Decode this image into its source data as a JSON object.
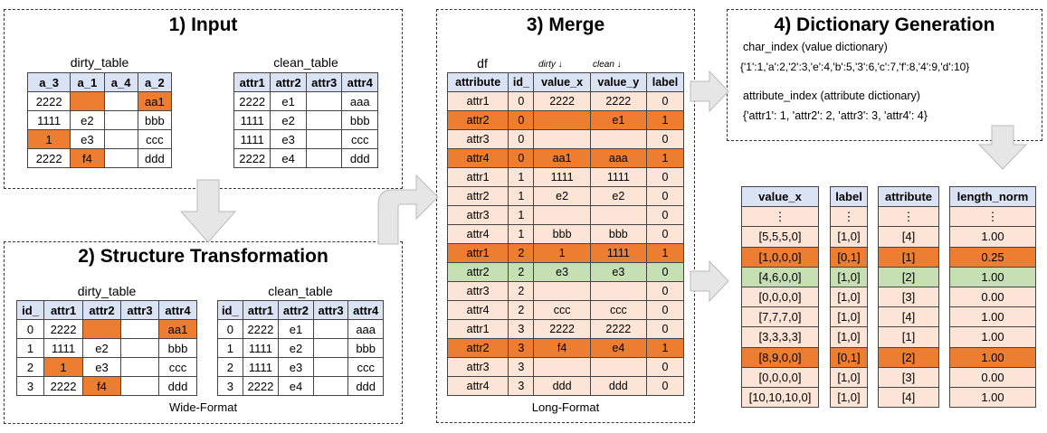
{
  "panel1": {
    "title": "1) Input",
    "dirty": {
      "caption": "dirty_table",
      "headers": [
        "a_3",
        "a_1",
        "a_4",
        "a_2"
      ],
      "rows": [
        [
          "2222",
          "",
          "",
          "aa1"
        ],
        [
          "1111",
          "e2",
          "",
          "bbb"
        ],
        [
          "1",
          "e3",
          "",
          "ccc"
        ],
        [
          "2222",
          "f4",
          "",
          "ddd"
        ]
      ],
      "highlight": [
        [
          0,
          1
        ],
        [
          0,
          3
        ],
        [
          2,
          0
        ],
        [
          3,
          1
        ]
      ]
    },
    "clean": {
      "caption": "clean_table",
      "headers": [
        "attr1",
        "attr2",
        "attr3",
        "attr4"
      ],
      "rows": [
        [
          "2222",
          "e1",
          "",
          "aaa"
        ],
        [
          "1111",
          "e2",
          "",
          "bbb"
        ],
        [
          "1111",
          "e3",
          "",
          "ccc"
        ],
        [
          "2222",
          "e4",
          "",
          "ddd"
        ]
      ],
      "highlight": []
    }
  },
  "panel2": {
    "title": "2) Structure Transformation",
    "footer": "Wide-Format",
    "dirty": {
      "caption": "dirty_table",
      "headers": [
        "id_",
        "attr1",
        "attr2",
        "attr3",
        "attr4"
      ],
      "rows": [
        [
          "0",
          "2222",
          "",
          "",
          "aa1"
        ],
        [
          "1",
          "1111",
          "e2",
          "",
          "bbb"
        ],
        [
          "2",
          "1",
          "e3",
          "",
          "ccc"
        ],
        [
          "3",
          "2222",
          "f4",
          "",
          "ddd"
        ]
      ],
      "highlight": [
        [
          0,
          2
        ],
        [
          0,
          4
        ],
        [
          2,
          1
        ],
        [
          3,
          2
        ]
      ]
    },
    "clean": {
      "caption": "clean_table",
      "headers": [
        "id_",
        "attr1",
        "attr2",
        "attr3",
        "attr4"
      ],
      "rows": [
        [
          "0",
          "2222",
          "e1",
          "",
          "aaa"
        ],
        [
          "1",
          "1111",
          "e2",
          "",
          "bbb"
        ],
        [
          "2",
          "1111",
          "e3",
          "",
          "ccc"
        ],
        [
          "3",
          "2222",
          "e4",
          "",
          "ddd"
        ]
      ],
      "highlight": []
    }
  },
  "panel3": {
    "title": "3) Merge",
    "footer": "Long-Format",
    "df_label": "df",
    "dirty_label": "dirty ↓",
    "clean_label": "clean ↓",
    "headers": [
      "attribute",
      "id_",
      "value_x",
      "value_y",
      "label"
    ],
    "rows": [
      [
        "attr1",
        "0",
        "2222",
        "2222",
        "0"
      ],
      [
        "attr2",
        "0",
        "",
        "e1",
        "1"
      ],
      [
        "attr3",
        "0",
        "",
        "",
        "0"
      ],
      [
        "attr4",
        "0",
        "aa1",
        "aaa",
        "1"
      ],
      [
        "attr1",
        "1",
        "1111",
        "1111",
        "0"
      ],
      [
        "attr2",
        "1",
        "e2",
        "e2",
        "0"
      ],
      [
        "attr3",
        "1",
        "",
        "",
        "0"
      ],
      [
        "attr4",
        "1",
        "bbb",
        "bbb",
        "0"
      ],
      [
        "attr1",
        "2",
        "1",
        "1111",
        "1"
      ],
      [
        "attr2",
        "2",
        "e3",
        "e3",
        "0"
      ],
      [
        "attr3",
        "2",
        "",
        "",
        "0"
      ],
      [
        "attr4",
        "2",
        "ccc",
        "ccc",
        "0"
      ],
      [
        "attr1",
        "3",
        "2222",
        "2222",
        "0"
      ],
      [
        "attr2",
        "3",
        "f4",
        "e4",
        "1"
      ],
      [
        "attr3",
        "3",
        "",
        "",
        "0"
      ],
      [
        "attr4",
        "3",
        "ddd",
        "ddd",
        "0"
      ]
    ],
    "row_styles": [
      "pk",
      "o",
      "pk",
      "o",
      "pk",
      "pk",
      "pk",
      "pk",
      "o",
      "g",
      "pk",
      "pk",
      "pk",
      "o",
      "pk",
      "pk"
    ]
  },
  "panel4": {
    "title": "4) Dictionary Generation",
    "char_index_label": "char_index (value dictionary)",
    "char_index_value": "{'1':1,'a':2,'2':3,'e':4,'b':5,'3':6,'c':7,'f':8,'4':9,'d':10}",
    "attr_index_label": "attribute_index (attribute dictionary)",
    "attr_index_value": "{'attr1': 1, 'attr2': 2, 'attr3': 3, 'attr4': 4}"
  },
  "bottom_tables": {
    "value_x": {
      "header": "value_x",
      "rows": [
        "⋮",
        "[5,5,5,0]",
        "[1,0,0,0]",
        "[4,6,0,0]",
        "[0,0,0,0]",
        "[7,7,7,0]",
        "[3,3,3,3]",
        "[8,9,0,0]",
        "[0,0,0,0]",
        "[10,10,10,0]"
      ]
    },
    "label": {
      "header": "label",
      "rows": [
        "⋮",
        "[1,0]",
        "[0,1]",
        "[1,0]",
        "[1,0]",
        "[1,0]",
        "[1,0]",
        "[0,1]",
        "[1,0]",
        "[1,0]"
      ]
    },
    "attribute": {
      "header": "attribute",
      "rows": [
        "⋮",
        "[4]",
        "[1]",
        "[2]",
        "[3]",
        "[4]",
        "[1]",
        "[2]",
        "[3]",
        "[4]"
      ]
    },
    "length_norm": {
      "header": "length_norm",
      "rows": [
        "⋮",
        "1.00",
        "0.25",
        "1.00",
        "0.00",
        "1.00",
        "1.00",
        "1.00",
        "0.00",
        "1.00"
      ]
    },
    "row_styles": [
      "pk",
      "pk",
      "o",
      "g",
      "pk",
      "pk",
      "pk",
      "o",
      "pk",
      "pk"
    ]
  },
  "colors": {
    "header": "#dae3f3",
    "error": "#ed7d31",
    "light": "#fce4d6",
    "green": "#c6e0b4",
    "arrow": "#e6e6e6"
  }
}
